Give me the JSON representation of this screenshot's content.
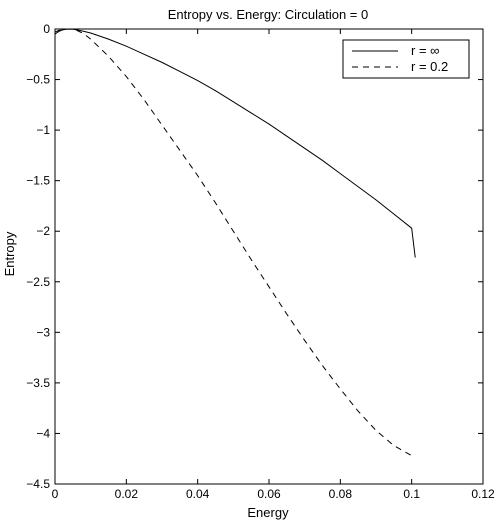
{
  "chart_data": {
    "type": "line",
    "title": "Entropy vs. Energy: Circulation = 0",
    "xlabel": "Energy",
    "ylabel": "Entropy",
    "xlim": [
      0,
      0.12
    ],
    "ylim": [
      -4.5,
      0
    ],
    "xticks": [
      0,
      0.02,
      0.04,
      0.06,
      0.08,
      0.1,
      0.12
    ],
    "xtick_labels": [
      "0",
      "0.02",
      "0.04",
      "0.06",
      "0.08",
      "0.1",
      "0.12"
    ],
    "yticks": [
      0,
      -0.5,
      -1,
      -1.5,
      -2,
      -2.5,
      -3,
      -3.5,
      -4,
      -4.5
    ],
    "ytick_labels": [
      "0",
      "−0.5",
      "−1",
      "−1.5",
      "−2",
      "−2.5",
      "−3",
      "−3.5",
      "−4",
      "−4.5"
    ],
    "grid": false,
    "legend_position": "top-right",
    "series": [
      {
        "name": "r = ∞",
        "style": "solid",
        "color": "#000000",
        "x": [
          0.0,
          0.001,
          0.002,
          0.003,
          0.004,
          0.005,
          0.006,
          0.008,
          0.01,
          0.015,
          0.02,
          0.025,
          0.03,
          0.035,
          0.04,
          0.045,
          0.05,
          0.055,
          0.06,
          0.065,
          0.07,
          0.075,
          0.08,
          0.085,
          0.09,
          0.095,
          0.1,
          0.101
        ],
        "y": [
          -0.05,
          -0.025,
          -0.01,
          -0.002,
          0.0,
          -0.002,
          -0.007,
          -0.022,
          -0.04,
          -0.1,
          -0.17,
          -0.25,
          -0.33,
          -0.42,
          -0.51,
          -0.61,
          -0.72,
          -0.83,
          -0.94,
          -1.06,
          -1.18,
          -1.3,
          -1.43,
          -1.56,
          -1.69,
          -1.83,
          -1.97,
          -2.26
        ]
      },
      {
        "name": "r = 0.2",
        "style": "dashed",
        "color": "#000000",
        "x": [
          0.0,
          0.001,
          0.002,
          0.003,
          0.004,
          0.005,
          0.006,
          0.008,
          0.01,
          0.015,
          0.02,
          0.025,
          0.03,
          0.035,
          0.04,
          0.045,
          0.05,
          0.055,
          0.06,
          0.065,
          0.07,
          0.075,
          0.08,
          0.085,
          0.09,
          0.095,
          0.1,
          0.101
        ],
        "y": [
          -0.03,
          -0.015,
          -0.005,
          -0.001,
          0.0,
          -0.003,
          -0.012,
          -0.045,
          -0.1,
          -0.27,
          -0.47,
          -0.7,
          -0.95,
          -1.2,
          -1.45,
          -1.72,
          -2.0,
          -2.28,
          -2.55,
          -2.82,
          -3.08,
          -3.33,
          -3.56,
          -3.78,
          -3.97,
          -4.12,
          -4.22,
          -4.23
        ]
      }
    ]
  }
}
